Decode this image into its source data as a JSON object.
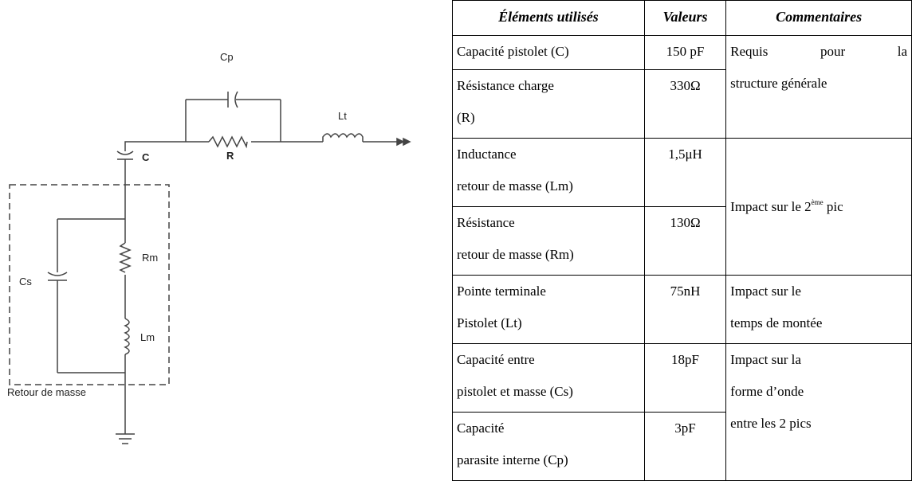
{
  "circuit": {
    "labels": {
      "cp": "Cp",
      "lt": "Lt",
      "r": "R",
      "c": "C",
      "rm": "Rm",
      "cs": "Cs",
      "lm": "Lm",
      "box": "Retour de masse"
    }
  },
  "table": {
    "header": [
      "Éléments utilisés",
      "Valeurs",
      "Commentaires"
    ],
    "rows": [
      {
        "element": [
          "Capacité pistolet (C)"
        ],
        "value": "150 pF"
      },
      {
        "element": [
          "Résistance charge",
          "(R)"
        ],
        "value": "330Ω"
      },
      {
        "element": [
          "Inductance",
          "retour de masse (Lm)"
        ],
        "value": "1,5μH"
      },
      {
        "element": [
          "Résistance",
          "retour de masse (Rm)"
        ],
        "value": "130Ω"
      },
      {
        "element": [
          "Pointe terminale",
          "Pistolet (Lt)"
        ],
        "value": "75nH"
      },
      {
        "element": [
          "Capacité entre",
          "pistolet et masse (Cs)"
        ],
        "value": "18pF"
      },
      {
        "element": [
          "Capacité",
          "parasite interne (Cp)"
        ],
        "value": "3pF"
      }
    ],
    "comments": [
      {
        "lines": [
          "Requis pour la",
          "structure générale"
        ]
      },
      {
        "parts": [
          "Impact sur le 2",
          "ème",
          " pic"
        ]
      },
      {
        "lines": [
          "Impact sur le",
          "temps de montée"
        ]
      },
      {
        "lines": [
          "Impact sur la",
          "forme d’onde",
          "entre les 2 pics"
        ]
      }
    ]
  }
}
